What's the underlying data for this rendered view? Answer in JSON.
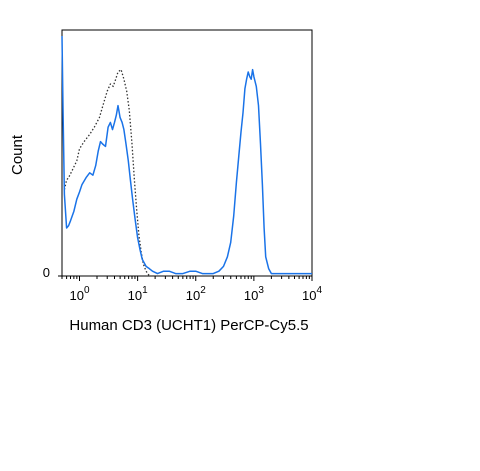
{
  "chart_data": {
    "type": "line",
    "xlabel": "Human CD3 (UCHT1) PerCP-Cy5.5",
    "ylabel": "Count",
    "x_scale": "log",
    "xlim": [
      0.5,
      10000
    ],
    "ylim": [
      0,
      100
    ],
    "x_ticks": [
      {
        "value": 1,
        "base": "10",
        "exp": "0"
      },
      {
        "value": 10,
        "base": "10",
        "exp": "1"
      },
      {
        "value": 100,
        "base": "10",
        "exp": "2"
      },
      {
        "value": 1000,
        "base": "10",
        "exp": "3"
      },
      {
        "value": 10000,
        "base": "10",
        "exp": "4"
      }
    ],
    "y_ticks": [
      {
        "value": 0,
        "label": "0"
      }
    ],
    "grid": false,
    "series": [
      {
        "style": "dotted",
        "color": "#333333",
        "x": [
          0.55,
          0.6,
          0.65,
          0.75,
          0.9,
          1.0,
          1.2,
          1.5,
          1.8,
          2.2,
          2.6,
          3.0,
          3.4,
          3.8,
          4.2,
          4.6,
          5.2,
          5.8,
          6.5,
          7.2,
          8.0,
          8.8,
          9.6,
          10.5,
          11.5,
          12.5,
          14,
          16
        ],
        "values": [
          36,
          40,
          41,
          44,
          48,
          53,
          56,
          59,
          62,
          66,
          72,
          77,
          80,
          79,
          82,
          85,
          86,
          82,
          77,
          69,
          55,
          40,
          28,
          17,
          10,
          5,
          2,
          0
        ]
      },
      {
        "style": "solid",
        "color": "#1a73e8",
        "x": [
          0.5,
          0.52,
          0.55,
          0.6,
          0.65,
          0.7,
          0.8,
          0.9,
          1.0,
          1.1,
          1.3,
          1.5,
          1.7,
          1.9,
          2.1,
          2.3,
          2.5,
          2.8,
          3.1,
          3.4,
          3.7,
          4.0,
          4.3,
          4.6,
          5.0,
          5.4,
          5.8,
          6.3,
          6.9,
          7.5,
          8.2,
          9.0,
          10,
          11,
          12,
          14,
          16,
          18,
          22,
          28,
          35,
          45,
          60,
          80,
          100,
          130,
          170,
          200,
          250,
          300,
          350,
          400,
          450,
          500,
          550,
          600,
          650,
          700,
          750,
          800,
          850,
          900,
          950,
          1000,
          1100,
          1200,
          1300,
          1400,
          1500,
          1600,
          1800,
          2000,
          2500,
          3000,
          4000,
          5000,
          7000,
          10000
        ],
        "values": [
          100,
          70,
          34,
          20,
          21,
          23,
          27,
          32,
          35,
          38,
          41,
          43,
          42,
          46,
          52,
          56,
          55,
          54,
          62,
          64,
          61,
          64,
          67,
          71,
          66,
          64,
          61,
          55,
          48,
          40,
          32,
          24,
          16,
          11,
          7,
          4,
          3,
          2,
          1,
          2,
          2,
          1,
          1,
          2,
          2,
          1,
          1,
          1,
          2,
          4,
          8,
          14,
          25,
          39,
          50,
          60,
          68,
          78,
          82,
          85,
          83,
          82,
          86,
          83,
          79,
          71,
          55,
          38,
          20,
          8,
          3,
          1,
          1,
          1,
          1,
          1,
          1,
          1
        ]
      }
    ]
  }
}
